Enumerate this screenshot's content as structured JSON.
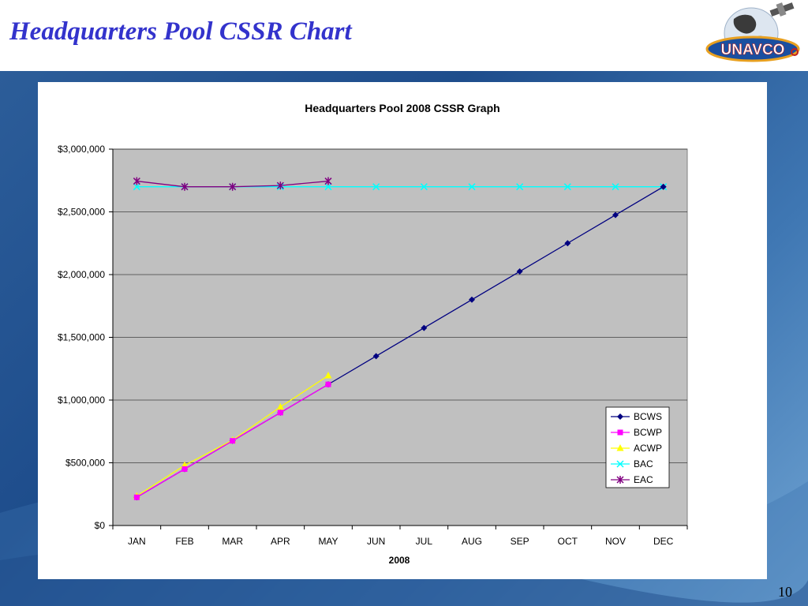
{
  "slide": {
    "title": "Headquarters Pool CSSR Chart",
    "logo_text": "UNAVCO",
    "page_number": "10"
  },
  "colors": {
    "title": "#3333cc",
    "plot_area": "#c0c0c0",
    "bcws": "#000080",
    "bcwp": "#ff00ff",
    "acwp": "#ffff00",
    "bac": "#00ffff",
    "eac": "#800080"
  },
  "chart_data": {
    "type": "line",
    "title": "Headquarters Pool 2008 CSSR Graph",
    "xlabel": "2008",
    "ylabel": "",
    "categories": [
      "JAN",
      "FEB",
      "MAR",
      "APR",
      "MAY",
      "JUN",
      "JUL",
      "AUG",
      "SEP",
      "OCT",
      "NOV",
      "DEC"
    ],
    "ylim": [
      0,
      3000000
    ],
    "yticks": [
      0,
      500000,
      1000000,
      1500000,
      2000000,
      2500000,
      3000000
    ],
    "ytick_labels": [
      "$0",
      "$500,000",
      "$1,000,000",
      "$1,500,000",
      "$2,000,000",
      "$2,500,000",
      "$3,000,000"
    ],
    "grid": true,
    "legend_position": "bottom-right",
    "series": [
      {
        "name": "BCWS",
        "marker": "diamond",
        "values": [
          225000,
          450000,
          675000,
          900000,
          1125000,
          1350000,
          1575000,
          1800000,
          2025000,
          2250000,
          2475000,
          2700000
        ]
      },
      {
        "name": "BCWP",
        "marker": "square",
        "values": [
          225000,
          450000,
          675000,
          900000,
          1125000,
          null,
          null,
          null,
          null,
          null,
          null,
          null
        ]
      },
      {
        "name": "ACWP",
        "marker": "triangle",
        "values": [
          235000,
          480000,
          680000,
          945000,
          1195000,
          null,
          null,
          null,
          null,
          null,
          null,
          null
        ]
      },
      {
        "name": "BAC",
        "marker": "x",
        "values": [
          2700000,
          2700000,
          2700000,
          2700000,
          2700000,
          2700000,
          2700000,
          2700000,
          2700000,
          2700000,
          2700000,
          2700000
        ]
      },
      {
        "name": "EAC",
        "marker": "star",
        "values": [
          2745000,
          2700000,
          2700000,
          2710000,
          2745000,
          null,
          null,
          null,
          null,
          null,
          null,
          null
        ]
      }
    ]
  }
}
